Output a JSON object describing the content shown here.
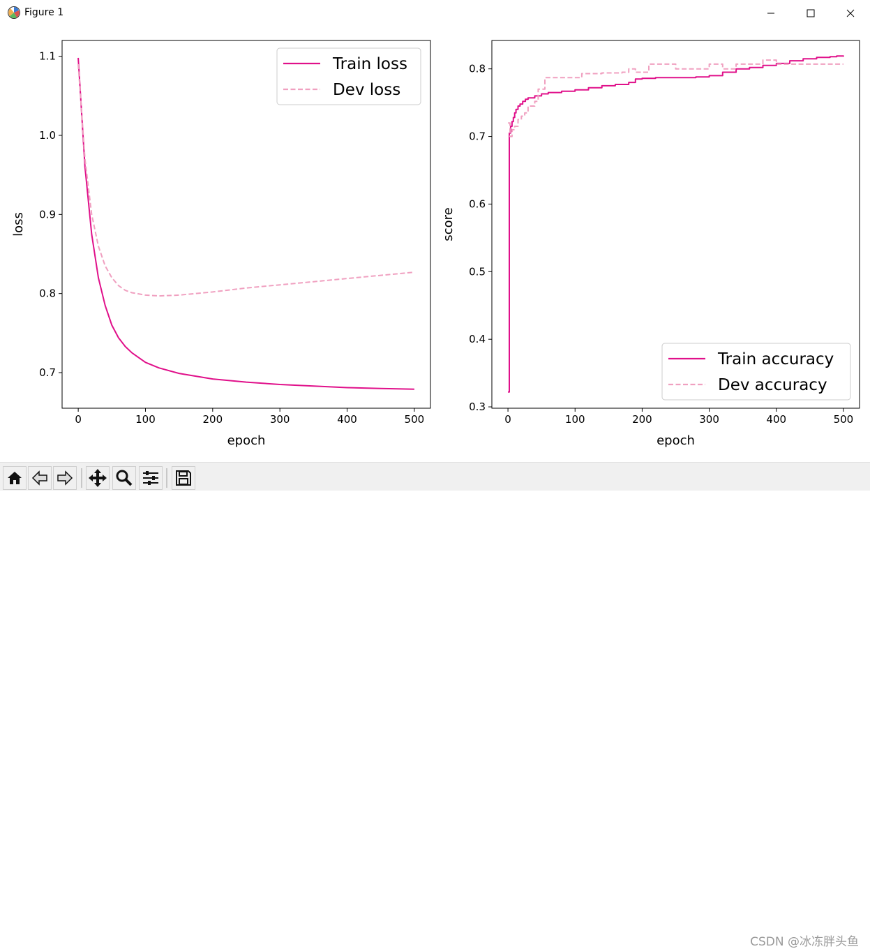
{
  "window": {
    "title": "Figure 1",
    "icons": [
      "app-icon",
      "minimize-icon",
      "maximize-icon",
      "close-icon"
    ]
  },
  "toolbar": {
    "icons": [
      "home-icon",
      "back-icon",
      "forward-icon",
      "pan-icon",
      "zoom-icon",
      "configure-subplots-icon",
      "save-icon"
    ],
    "watermark": "CSDN @冰冻胖头鱼"
  },
  "colors": {
    "train": "#e0108a",
    "dev": "#f0a0c0"
  },
  "chart_data": [
    {
      "type": "line",
      "xlabel": "epoch",
      "ylabel": "loss",
      "xlim": [
        -24,
        524
      ],
      "ylim": [
        0.655,
        1.12
      ],
      "xticks": [
        0,
        100,
        200,
        300,
        400,
        500
      ],
      "xtick_labels": [
        "0",
        "100",
        "200",
        "300",
        "400",
        "500"
      ],
      "yticks": [
        0.7,
        0.8,
        0.9,
        1.0,
        1.1
      ],
      "ytick_labels": [
        "0.7",
        "0.8",
        "0.9",
        "1.0",
        "1.1"
      ],
      "legend_position": "top-right",
      "grid": false,
      "series": [
        {
          "name": "Train loss",
          "style": "solid",
          "x": [
            0,
            10,
            20,
            30,
            40,
            50,
            60,
            70,
            80,
            100,
            120,
            150,
            200,
            250,
            300,
            350,
            400,
            450,
            500
          ],
          "y": [
            1.098,
            0.96,
            0.875,
            0.82,
            0.785,
            0.76,
            0.744,
            0.733,
            0.725,
            0.713,
            0.706,
            0.699,
            0.692,
            0.688,
            0.685,
            0.683,
            0.681,
            0.68,
            0.679
          ]
        },
        {
          "name": "Dev loss",
          "style": "dashed",
          "x": [
            0,
            10,
            20,
            30,
            40,
            50,
            60,
            70,
            80,
            100,
            120,
            150,
            200,
            250,
            300,
            350,
            400,
            450,
            500
          ],
          "y": [
            1.09,
            0.97,
            0.9,
            0.86,
            0.835,
            0.82,
            0.81,
            0.804,
            0.801,
            0.798,
            0.797,
            0.798,
            0.802,
            0.807,
            0.811,
            0.815,
            0.819,
            0.823,
            0.827
          ]
        }
      ]
    },
    {
      "type": "line",
      "xlabel": "epoch",
      "ylabel": "score",
      "xlim": [
        -24,
        524
      ],
      "ylim": [
        0.298,
        0.842
      ],
      "xticks": [
        0,
        100,
        200,
        300,
        400,
        500
      ],
      "xtick_labels": [
        "0",
        "100",
        "200",
        "300",
        "400",
        "500"
      ],
      "yticks": [
        0.3,
        0.4,
        0.5,
        0.6,
        0.7,
        0.8
      ],
      "ytick_labels": [
        "0.3",
        "0.4",
        "0.5",
        "0.6",
        "0.7",
        "0.8"
      ],
      "legend_position": "bottom-right",
      "grid": false,
      "series": [
        {
          "name": "Train accuracy",
          "style": "solid",
          "step": true,
          "x": [
            0,
            2,
            4,
            6,
            8,
            10,
            12,
            15,
            18,
            22,
            26,
            30,
            40,
            50,
            60,
            80,
            100,
            120,
            140,
            160,
            180,
            190,
            200,
            220,
            250,
            280,
            300,
            320,
            340,
            360,
            380,
            400,
            420,
            440,
            460,
            480,
            490,
            500
          ],
          "y": [
            0.322,
            0.705,
            0.715,
            0.722,
            0.728,
            0.735,
            0.74,
            0.745,
            0.748,
            0.752,
            0.755,
            0.757,
            0.76,
            0.763,
            0.765,
            0.767,
            0.769,
            0.772,
            0.775,
            0.777,
            0.78,
            0.785,
            0.786,
            0.787,
            0.787,
            0.788,
            0.79,
            0.795,
            0.8,
            0.802,
            0.805,
            0.808,
            0.812,
            0.815,
            0.817,
            0.818,
            0.819,
            0.818
          ]
        },
        {
          "name": "Dev accuracy",
          "style": "dashed",
          "step": true,
          "x": [
            0,
            3,
            6,
            10,
            15,
            20,
            25,
            30,
            40,
            45,
            55,
            70,
            100,
            110,
            120,
            140,
            170,
            180,
            190,
            210,
            230,
            250,
            280,
            300,
            320,
            340,
            360,
            380,
            400,
            430,
            460,
            500
          ],
          "y": [
            0.72,
            0.7,
            0.71,
            0.715,
            0.725,
            0.73,
            0.735,
            0.745,
            0.752,
            0.77,
            0.787,
            0.787,
            0.787,
            0.793,
            0.793,
            0.794,
            0.795,
            0.8,
            0.795,
            0.807,
            0.807,
            0.8,
            0.8,
            0.807,
            0.8,
            0.807,
            0.807,
            0.813,
            0.807,
            0.807,
            0.807,
            0.807
          ]
        }
      ]
    }
  ]
}
